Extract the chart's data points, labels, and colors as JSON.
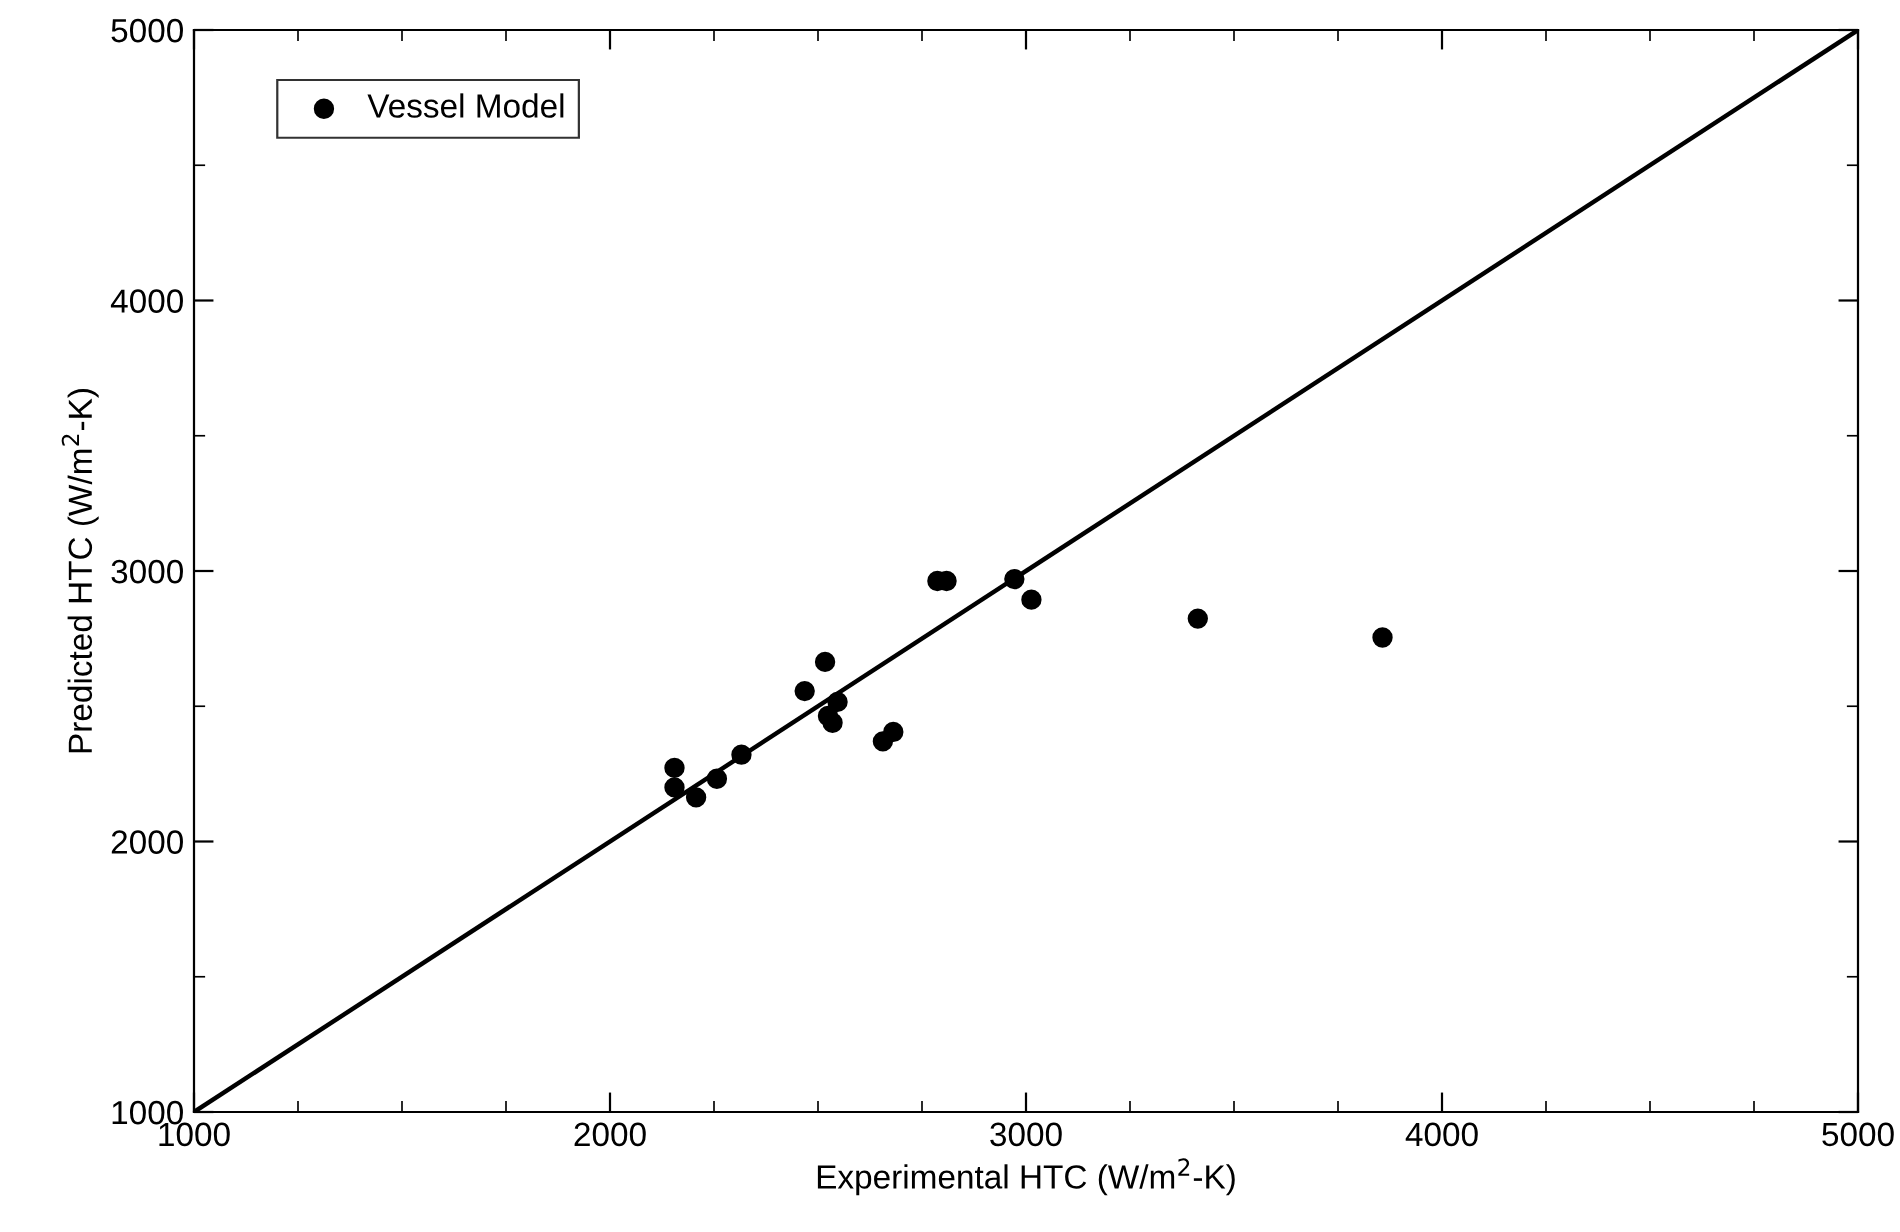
{
  "chart_data": {
    "type": "scatter",
    "xlabel": "Experimental HTC (W/m$^{2}$-K)",
    "ylabel": "Predicted HTC (W/m$^{2}$-K)",
    "xlim": [
      1000,
      5000
    ],
    "ylim": [
      1000,
      5000
    ],
    "xticks": [
      1000,
      2000,
      3000,
      4000,
      5000
    ],
    "yticks": [
      1000,
      2000,
      3000,
      4000,
      5000
    ],
    "grid": false,
    "legend": "top left",
    "series": [
      {
        "name": "Vessel Model",
        "marker": "circle",
        "color": "#000000",
        "x": [
          2155,
          2155,
          2207,
          2257,
          2316,
          2468,
          2517,
          2547,
          2524,
          2535,
          2656,
          2681,
          2787,
          2809,
          2972,
          3013,
          3413,
          3857
        ],
        "values": [
          2272,
          2200,
          2163,
          2232,
          2321,
          2556,
          2664,
          2516,
          2464,
          2439,
          2370,
          2405,
          2963,
          2963,
          2970,
          2894,
          2824,
          2754
        ]
      },
      {
        "type": "line",
        "color": "#000000",
        "x": [
          1000,
          5000
        ],
        "values": [
          1000,
          5000
        ]
      }
    ]
  }
}
